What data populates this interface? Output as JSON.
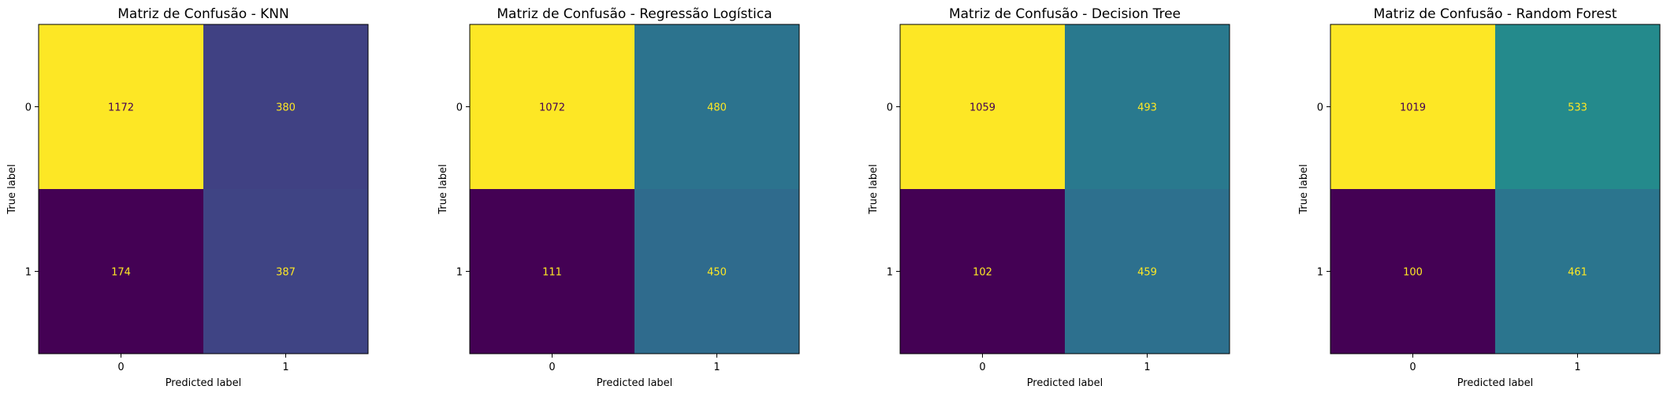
{
  "chart_data": [
    {
      "type": "heatmap",
      "title": "Matriz de Confusão - KNN",
      "xlabel": "Predicted label",
      "ylabel": "True label",
      "x_ticks": [
        "0",
        "1"
      ],
      "y_ticks": [
        "0",
        "1"
      ],
      "values": [
        [
          1172,
          380
        ],
        [
          174,
          387
        ]
      ],
      "colormap": "viridis",
      "colorbar": false
    },
    {
      "type": "heatmap",
      "title": "Matriz de Confusão - Regressão Logística",
      "xlabel": "Predicted label",
      "ylabel": "True label",
      "x_ticks": [
        "0",
        "1"
      ],
      "y_ticks": [
        "0",
        "1"
      ],
      "values": [
        [
          1072,
          480
        ],
        [
          111,
          450
        ]
      ],
      "colormap": "viridis",
      "colorbar": false
    },
    {
      "type": "heatmap",
      "title": "Matriz de Confusão - Decision Tree",
      "xlabel": "Predicted label",
      "ylabel": "True label",
      "x_ticks": [
        "0",
        "1"
      ],
      "y_ticks": [
        "0",
        "1"
      ],
      "values": [
        [
          1059,
          493
        ],
        [
          102,
          459
        ]
      ],
      "colormap": "viridis",
      "colorbar": false
    },
    {
      "type": "heatmap",
      "title": "Matriz de Confusão - Random Forest",
      "xlabel": "Predicted label",
      "ylabel": "True label",
      "x_ticks": [
        "0",
        "1"
      ],
      "y_ticks": [
        "0",
        "1"
      ],
      "values": [
        [
          1019,
          533
        ],
        [
          100,
          461
        ]
      ],
      "colormap": "viridis",
      "colorbar": false
    }
  ]
}
